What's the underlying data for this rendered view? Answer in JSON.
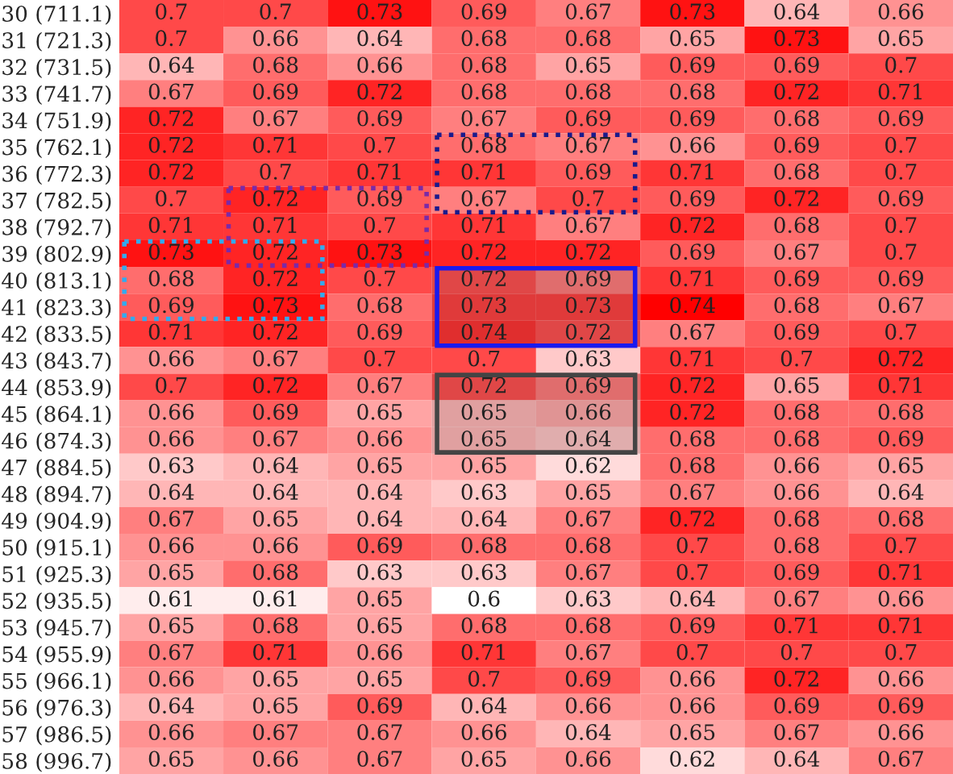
{
  "chart_data": {
    "type": "heatmap",
    "categories": [
      null,
      null,
      null,
      null,
      null,
      null,
      null,
      null
    ],
    "y_categories": [
      "30 (711.1)",
      "31 (721.3)",
      "32 (731.5)",
      "33 (741.7)",
      "34 (751.9)",
      "35 (762.1)",
      "36 (772.3)",
      "37 (782.5)",
      "38 (792.7)",
      "39 (802.9)",
      "40 (813.1)",
      "41 (823.3)",
      "42 (833.5)",
      "43 (843.7)",
      "44 (853.9)",
      "45 (864.1)",
      "46 (874.3)",
      "47 (884.5)",
      "48 (894.7)",
      "49 (904.9)",
      "50 (915.1)",
      "51 (925.3)",
      "52 (935.5)",
      "53 (945.7)",
      "54 (955.9)",
      "55 (966.1)",
      "56 (976.3)",
      "57 (986.5)",
      "58 (996.7)"
    ],
    "cells": [
      [
        0.7,
        0.7,
        0.73,
        0.69,
        0.67,
        0.73,
        0.64,
        0.66
      ],
      [
        0.7,
        0.66,
        0.64,
        0.68,
        0.68,
        0.65,
        0.73,
        0.65
      ],
      [
        0.64,
        0.68,
        0.66,
        0.68,
        0.65,
        0.69,
        0.69,
        0.7
      ],
      [
        0.67,
        0.69,
        0.72,
        0.68,
        0.68,
        0.68,
        0.72,
        0.71
      ],
      [
        0.72,
        0.67,
        0.69,
        0.67,
        0.69,
        0.69,
        0.68,
        0.69
      ],
      [
        0.72,
        0.71,
        0.7,
        0.68,
        0.67,
        0.66,
        0.69,
        0.7
      ],
      [
        0.72,
        0.7,
        0.71,
        0.71,
        0.69,
        0.71,
        0.68,
        0.7
      ],
      [
        0.7,
        0.72,
        0.69,
        0.67,
        0.7,
        0.69,
        0.72,
        0.69
      ],
      [
        0.71,
        0.71,
        0.7,
        0.71,
        0.67,
        0.72,
        0.68,
        0.7
      ],
      [
        0.73,
        0.72,
        0.73,
        0.72,
        0.72,
        0.69,
        0.67,
        0.7
      ],
      [
        0.68,
        0.72,
        0.7,
        0.72,
        0.69,
        0.71,
        0.69,
        0.69
      ],
      [
        0.69,
        0.73,
        0.68,
        0.73,
        0.73,
        0.74,
        0.68,
        0.67
      ],
      [
        0.71,
        0.72,
        0.69,
        0.74,
        0.72,
        0.67,
        0.69,
        0.7
      ],
      [
        0.66,
        0.67,
        0.7,
        0.7,
        0.63,
        0.71,
        0.7,
        0.72
      ],
      [
        0.7,
        0.72,
        0.67,
        0.72,
        0.69,
        0.72,
        0.65,
        0.71
      ],
      [
        0.66,
        0.69,
        0.65,
        0.65,
        0.66,
        0.72,
        0.68,
        0.68
      ],
      [
        0.66,
        0.67,
        0.66,
        0.65,
        0.64,
        0.68,
        0.68,
        0.69
      ],
      [
        0.63,
        0.64,
        0.65,
        0.65,
        0.62,
        0.68,
        0.66,
        0.65
      ],
      [
        0.64,
        0.64,
        0.64,
        0.63,
        0.65,
        0.67,
        0.66,
        0.64
      ],
      [
        0.67,
        0.65,
        0.64,
        0.64,
        0.67,
        0.72,
        0.68,
        0.68
      ],
      [
        0.66,
        0.66,
        0.69,
        0.68,
        0.68,
        0.7,
        0.68,
        0.7
      ],
      [
        0.65,
        0.68,
        0.63,
        0.63,
        0.67,
        0.7,
        0.69,
        0.71
      ],
      [
        0.61,
        0.61,
        0.65,
        0.6,
        0.63,
        0.64,
        0.67,
        0.66
      ],
      [
        0.65,
        0.68,
        0.65,
        0.68,
        0.68,
        0.69,
        0.71,
        0.71
      ],
      [
        0.67,
        0.71,
        0.66,
        0.71,
        0.67,
        0.7,
        0.7,
        0.7
      ],
      [
        0.66,
        0.65,
        0.65,
        0.7,
        0.69,
        0.66,
        0.72,
        0.66
      ],
      [
        0.64,
        0.65,
        0.69,
        0.64,
        0.66,
        0.66,
        0.69,
        0.69
      ],
      [
        0.66,
        0.67,
        0.67,
        0.66,
        0.64,
        0.65,
        0.67,
        0.66
      ],
      [
        0.65,
        0.66,
        0.67,
        0.65,
        0.66,
        0.62,
        0.64,
        0.67
      ]
    ],
    "data_labels": true
  }
}
